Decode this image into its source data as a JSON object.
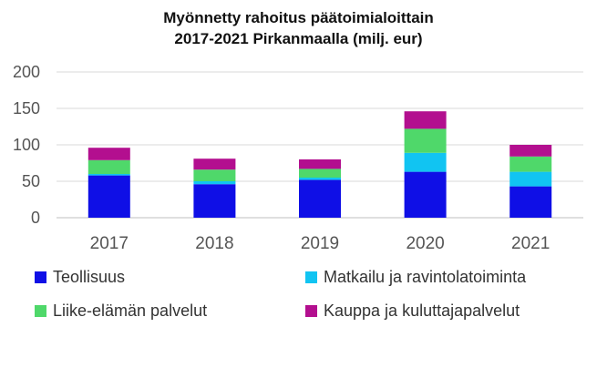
{
  "chart_data": {
    "type": "bar",
    "stacked": true,
    "title": "Myönnetty rahoitus päätoimialoittain",
    "subtitle": "2017-2021 Pirkanmaalla (milj. eur)",
    "categories": [
      "2017",
      "2018",
      "2019",
      "2020",
      "2021"
    ],
    "ylim": [
      0,
      200
    ],
    "yticks": [
      "0",
      "50",
      "100",
      "150",
      "200"
    ],
    "grid": true,
    "legend_position": "bottom",
    "series": [
      {
        "name": "Teollisuus",
        "color": "#0f0fe6",
        "values": [
          58,
          46,
          52,
          63,
          43
        ]
      },
      {
        "name": "Matkailu ja ravintolatoiminta",
        "color": "#11c4f2",
        "values": [
          2,
          4,
          3,
          26,
          20
        ]
      },
      {
        "name": "Liike-elämän palvelut",
        "color": "#4fd86a",
        "values": [
          19,
          16,
          12,
          33,
          21
        ]
      },
      {
        "name": "Kauppa ja kuluttajapalvelut",
        "color": "#b30f8f",
        "values": [
          17,
          15,
          13,
          24,
          16
        ]
      }
    ]
  }
}
